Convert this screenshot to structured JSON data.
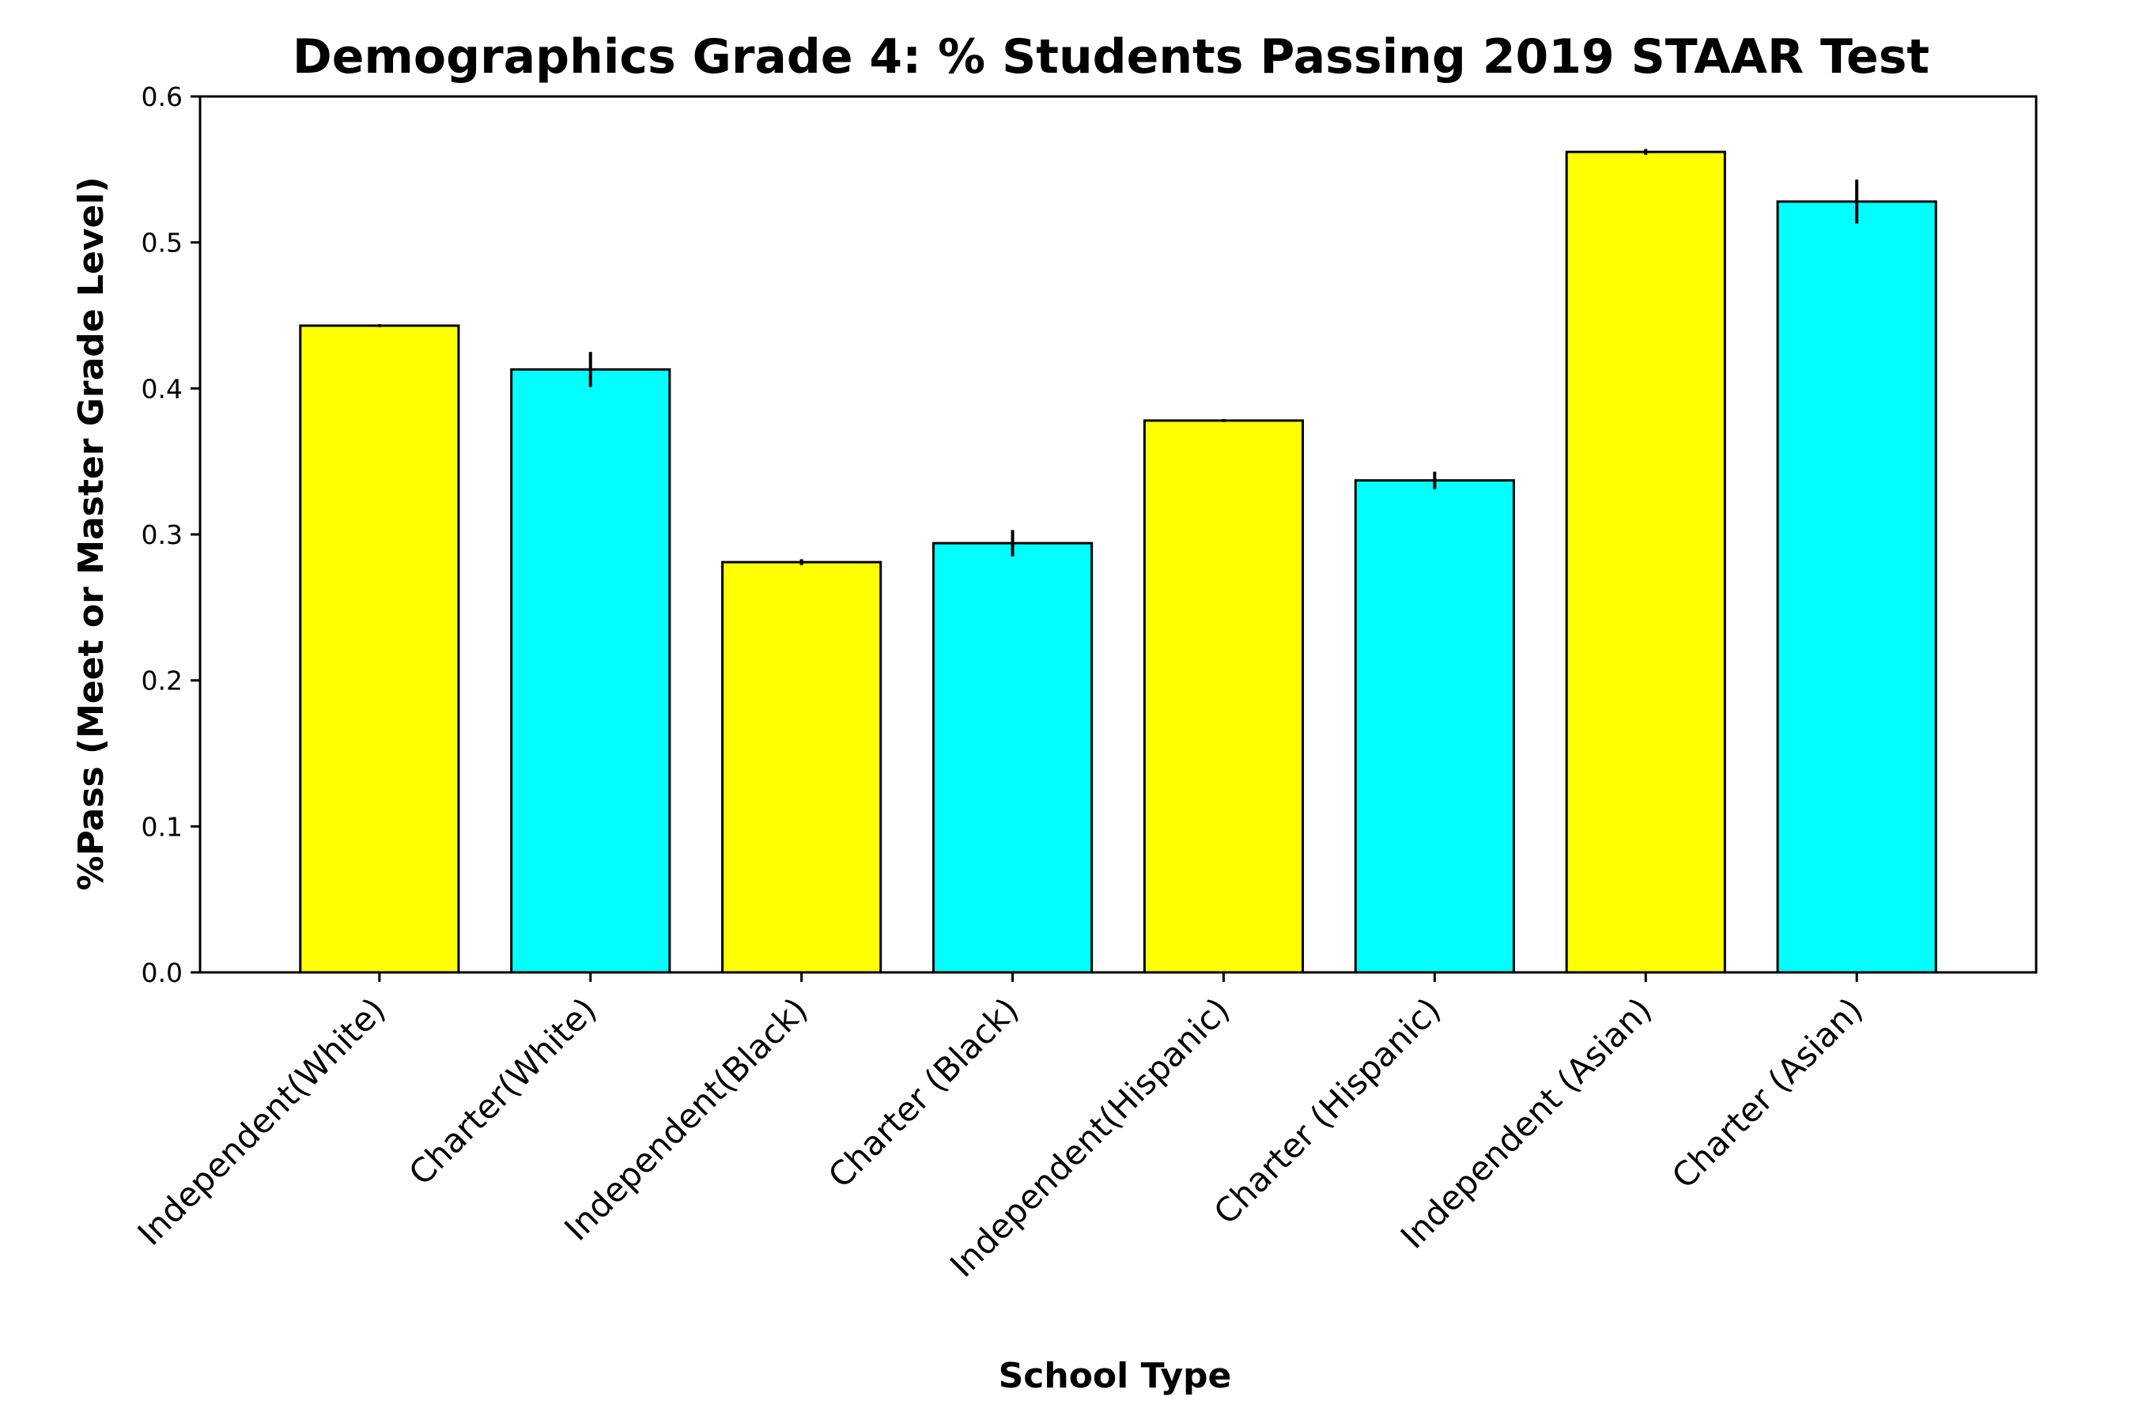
{
  "chart_data": {
    "type": "bar",
    "title": "Demographics Grade 4: % Students Passing 2019 STAAR Test",
    "xlabel": "School Type",
    "ylabel": "%Pass (Meet or Master Grade Level)",
    "ylim": [
      0,
      0.6
    ],
    "yticks": [
      "0.0",
      "0.1",
      "0.2",
      "0.3",
      "0.4",
      "0.5",
      "0.6"
    ],
    "grid": false,
    "categories": [
      "Independent(White)",
      "Charter(White)",
      "Independent(Black)",
      "Charter (Black)",
      "Independent(Hispanic)",
      "Charter (Hispanic)",
      "Independent (Asian)",
      "Charter (Asian)"
    ],
    "values": [
      0.443,
      0.413,
      0.281,
      0.294,
      0.378,
      0.337,
      0.562,
      0.528
    ],
    "errors": [
      0.001,
      0.012,
      0.002,
      0.009,
      0.001,
      0.006,
      0.002,
      0.015
    ],
    "colors": [
      "#ffff00",
      "#00ffff",
      "#ffff00",
      "#00ffff",
      "#ffff00",
      "#00ffff",
      "#ffff00",
      "#00ffff"
    ]
  }
}
